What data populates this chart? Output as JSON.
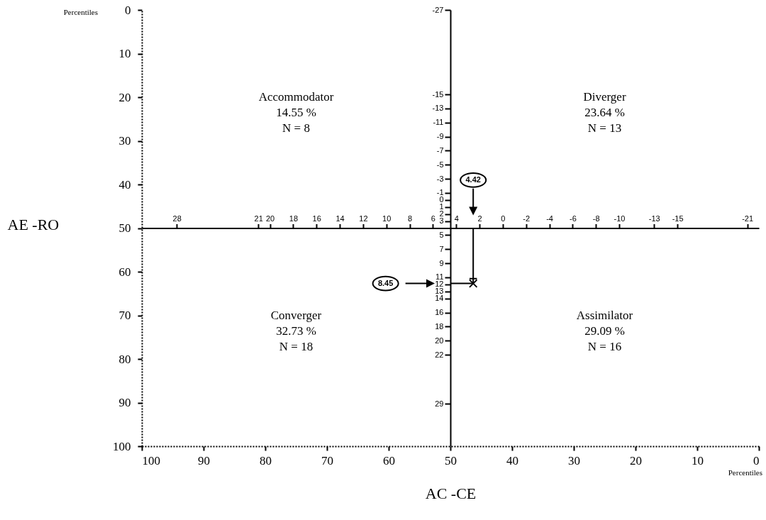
{
  "chart_data": {
    "type": "scatter",
    "xlabel": "AC -CE",
    "ylabel": "AE -RO",
    "xlim": [
      100,
      0
    ],
    "ylim": [
      100,
      0
    ],
    "xticks": [
      100,
      90,
      80,
      70,
      60,
      50,
      40,
      30,
      20,
      10,
      0
    ],
    "yticks": [
      0,
      10,
      20,
      30,
      40,
      50,
      60,
      70,
      80,
      90,
      100
    ],
    "x2lim": [
      31,
      -22
    ],
    "x2ticks": [
      28,
      21,
      20,
      18,
      16,
      14,
      12,
      10,
      8,
      6,
      4,
      2,
      0,
      -2,
      -4,
      -6,
      -8,
      -10,
      -13,
      -15,
      -21
    ],
    "y2lim": [
      35,
      -27
    ],
    "y2ticks": [
      -27,
      -15,
      -13,
      -11,
      -9,
      -7,
      -5,
      -3,
      -1,
      0,
      1,
      2,
      3,
      5,
      7,
      9,
      11,
      12,
      13,
      14,
      16,
      18,
      20,
      22,
      29
    ],
    "series": [
      {
        "color": "#000000",
        "x": [
          46.3
        ],
        "values": [
          62.7
        ]
      }
    ],
    "marker": "cross",
    "grid": false,
    "annotations": [
      "Accommodator\n14.55 %\nN = 8",
      "Diverger\n23.64 %\nN = 13",
      "Converger\n32.73 %\nN = 18",
      "Assimilator\n29.09 %\nN = 16",
      "Percentiles",
      "Percentiles",
      "4.42",
      "8.45"
    ]
  }
}
